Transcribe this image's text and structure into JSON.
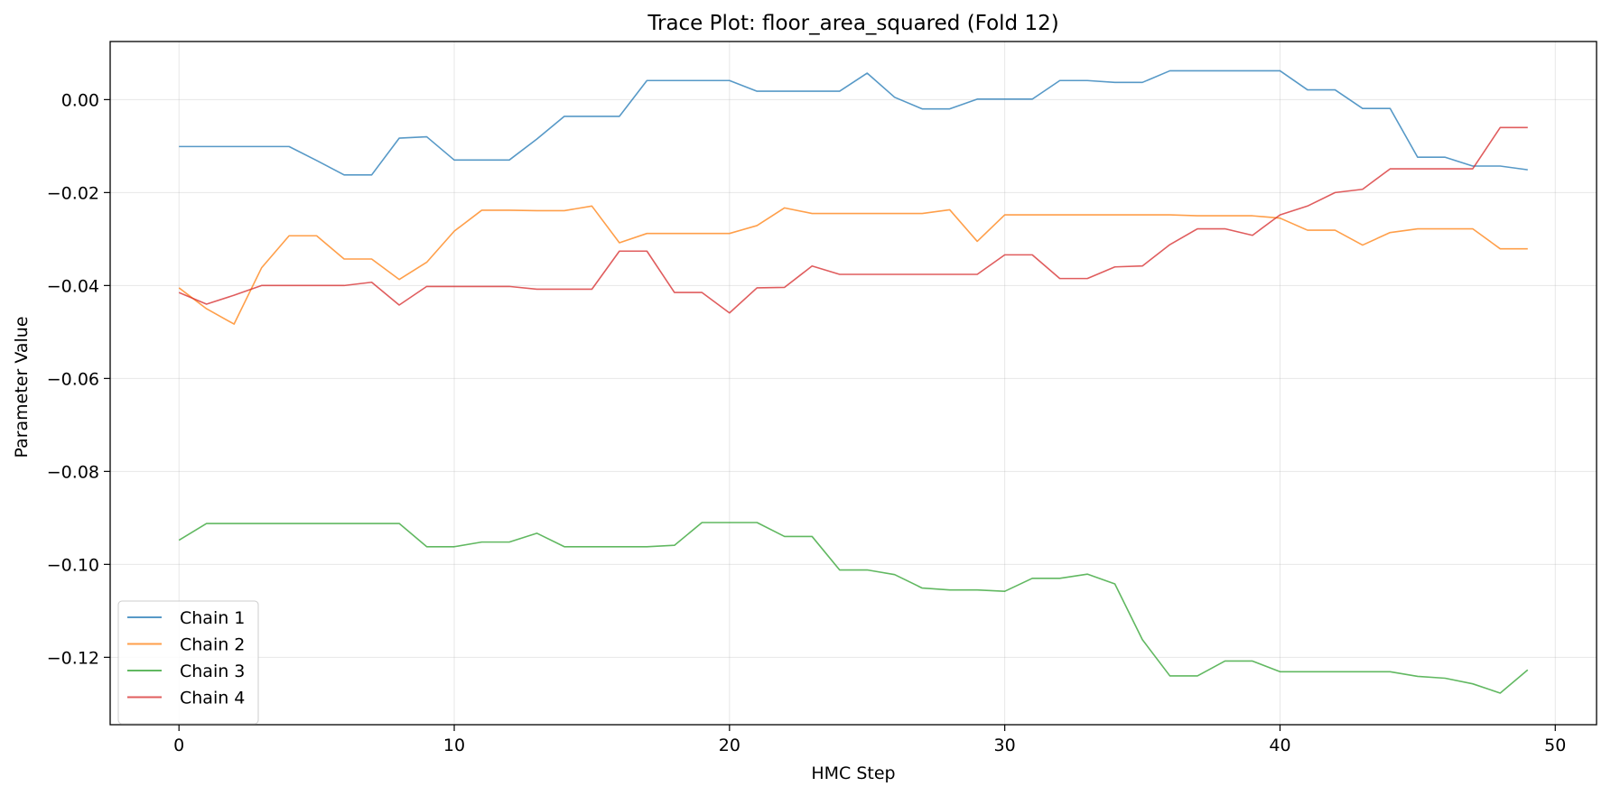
{
  "chart_data": {
    "type": "line",
    "title": "Trace Plot: floor_area_squared (Fold 12)",
    "xlabel": "HMC Step",
    "ylabel": "Parameter Value",
    "xlim": [
      -2.5,
      51.5
    ],
    "ylim": [
      -0.1345,
      0.0125
    ],
    "xticks": [
      0,
      10,
      20,
      30,
      40,
      50
    ],
    "yticks": [
      0.0,
      -0.02,
      -0.04,
      -0.06,
      -0.08,
      -0.1,
      -0.12
    ],
    "ytick_labels": [
      "0.00",
      "−0.02",
      "−0.04",
      "−0.06",
      "−0.08",
      "−0.10",
      "−0.12"
    ],
    "grid": true,
    "legend_position": "lower-left",
    "x": [
      0,
      1,
      2,
      3,
      4,
      5,
      6,
      7,
      8,
      9,
      10,
      11,
      12,
      13,
      14,
      15,
      16,
      17,
      18,
      19,
      20,
      21,
      22,
      23,
      24,
      25,
      26,
      27,
      28,
      29,
      30,
      31,
      32,
      33,
      34,
      35,
      36,
      37,
      38,
      39,
      40,
      41,
      42,
      43,
      44,
      45,
      46,
      47,
      48,
      49
    ],
    "series": [
      {
        "name": "Chain 1",
        "color": "#1f77b4",
        "values": [
          -0.0101,
          -0.0101,
          -0.0101,
          -0.0101,
          -0.0101,
          -0.0131,
          -0.0162,
          -0.0162,
          -0.0083,
          -0.008,
          -0.013,
          -0.013,
          -0.013,
          -0.0085,
          -0.0036,
          -0.0036,
          -0.0036,
          0.0041,
          0.0041,
          0.0041,
          0.0041,
          0.0018,
          0.0018,
          0.0018,
          0.0018,
          0.0057,
          0.0005,
          -0.002,
          -0.002,
          0.0001,
          0.0001,
          0.0001,
          0.0041,
          0.0041,
          0.0037,
          0.0037,
          0.0062,
          0.0062,
          0.0062,
          0.0062,
          0.0062,
          0.0021,
          0.0021,
          -0.0019,
          -0.0019,
          -0.0124,
          -0.0124,
          -0.0143,
          -0.0143,
          -0.0151
        ]
      },
      {
        "name": "Chain 2",
        "color": "#ff7f0e",
        "values": [
          -0.0405,
          -0.045,
          -0.0483,
          -0.0362,
          -0.0293,
          -0.0293,
          -0.0343,
          -0.0343,
          -0.0387,
          -0.035,
          -0.0283,
          -0.0238,
          -0.0238,
          -0.0239,
          -0.0239,
          -0.0229,
          -0.0308,
          -0.0288,
          -0.0288,
          -0.0288,
          -0.0288,
          -0.0271,
          -0.0233,
          -0.0245,
          -0.0245,
          -0.0245,
          -0.0245,
          -0.0245,
          -0.0237,
          -0.0305,
          -0.0248,
          -0.0248,
          -0.0248,
          -0.0248,
          -0.0248,
          -0.0248,
          -0.0248,
          -0.025,
          -0.025,
          -0.025,
          -0.0255,
          -0.0281,
          -0.0281,
          -0.0313,
          -0.0286,
          -0.0278,
          -0.0278,
          -0.0278,
          -0.0321,
          -0.0321
        ]
      },
      {
        "name": "Chain 3",
        "color": "#2ca02c",
        "values": [
          -0.0948,
          -0.0912,
          -0.0912,
          -0.0912,
          -0.0912,
          -0.0912,
          -0.0912,
          -0.0912,
          -0.0912,
          -0.0962,
          -0.0962,
          -0.0952,
          -0.0952,
          -0.0933,
          -0.0962,
          -0.0962,
          -0.0962,
          -0.0962,
          -0.0959,
          -0.091,
          -0.091,
          -0.091,
          -0.094,
          -0.094,
          -0.1012,
          -0.1012,
          -0.1022,
          -0.1051,
          -0.1055,
          -0.1055,
          -0.1058,
          -0.103,
          -0.103,
          -0.1021,
          -0.1042,
          -0.1162,
          -0.124,
          -0.124,
          -0.1208,
          -0.1208,
          -0.1231,
          -0.1231,
          -0.1231,
          -0.1231,
          -0.1231,
          -0.1241,
          -0.1245,
          -0.1257,
          -0.1277,
          -0.1227
        ]
      },
      {
        "name": "Chain 4",
        "color": "#d62728",
        "values": [
          -0.0415,
          -0.044,
          -0.0421,
          -0.04,
          -0.04,
          -0.04,
          -0.04,
          -0.0393,
          -0.0442,
          -0.0402,
          -0.0402,
          -0.0402,
          -0.0402,
          -0.0408,
          -0.0408,
          -0.0408,
          -0.0326,
          -0.0326,
          -0.0415,
          -0.0415,
          -0.0459,
          -0.0405,
          -0.0404,
          -0.0358,
          -0.0376,
          -0.0376,
          -0.0376,
          -0.0376,
          -0.0376,
          -0.0376,
          -0.0334,
          -0.0334,
          -0.0385,
          -0.0385,
          -0.036,
          -0.0358,
          -0.0312,
          -0.0278,
          -0.0278,
          -0.0292,
          -0.0248,
          -0.0229,
          -0.02,
          -0.0193,
          -0.0149,
          -0.0149,
          -0.0149,
          -0.0149,
          -0.006,
          -0.006
        ]
      }
    ]
  }
}
